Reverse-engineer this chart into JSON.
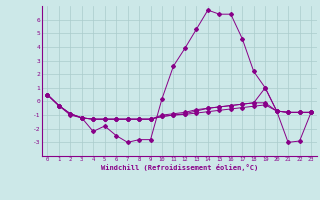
{
  "x": [
    0,
    1,
    2,
    3,
    4,
    5,
    6,
    7,
    8,
    9,
    10,
    11,
    12,
    13,
    14,
    15,
    16,
    17,
    18,
    19,
    20,
    21,
    22,
    23
  ],
  "line1": [
    0.5,
    -0.3,
    -0.9,
    -1.2,
    -2.2,
    -1.8,
    -2.5,
    -3.0,
    -2.8,
    -2.8,
    0.2,
    2.6,
    3.9,
    5.3,
    6.7,
    6.4,
    6.4,
    4.6,
    2.2,
    1.0,
    -0.7,
    -3.0,
    -2.9,
    -0.8
  ],
  "line2": [
    0.5,
    -0.3,
    -0.9,
    -1.2,
    -1.3,
    -1.3,
    -1.3,
    -1.3,
    -1.3,
    -1.3,
    -1.1,
    -1.0,
    -0.9,
    -0.7,
    -0.5,
    -0.4,
    -0.3,
    -0.2,
    -0.1,
    1.0,
    -0.7,
    -0.8,
    -0.8,
    -0.8
  ],
  "line3": [
    0.5,
    -0.3,
    -0.9,
    -1.2,
    -1.3,
    -1.3,
    -1.3,
    -1.3,
    -1.3,
    -1.3,
    -1.0,
    -0.9,
    -0.8,
    -0.6,
    -0.5,
    -0.4,
    -0.3,
    -0.2,
    -0.1,
    -0.1,
    -0.7,
    -0.8,
    -0.8,
    -0.8
  ],
  "line4": [
    0.5,
    -0.3,
    -1.0,
    -1.2,
    -1.3,
    -1.3,
    -1.3,
    -1.3,
    -1.3,
    -1.3,
    -1.1,
    -1.0,
    -0.95,
    -0.85,
    -0.75,
    -0.65,
    -0.55,
    -0.45,
    -0.35,
    -0.25,
    -0.7,
    -0.8,
    -0.8,
    -0.8
  ],
  "bg_color": "#cce8e8",
  "grid_color": "#aacccc",
  "line_color": "#880088",
  "ylim": [
    -4,
    7
  ],
  "yticks": [
    -3,
    -2,
    -1,
    0,
    1,
    2,
    3,
    4,
    5,
    6
  ],
  "xticks": [
    0,
    1,
    2,
    3,
    4,
    5,
    6,
    7,
    8,
    9,
    10,
    11,
    12,
    13,
    14,
    15,
    16,
    17,
    18,
    19,
    20,
    21,
    22,
    23
  ],
  "xlabel": "Windchill (Refroidissement éolien,°C)"
}
